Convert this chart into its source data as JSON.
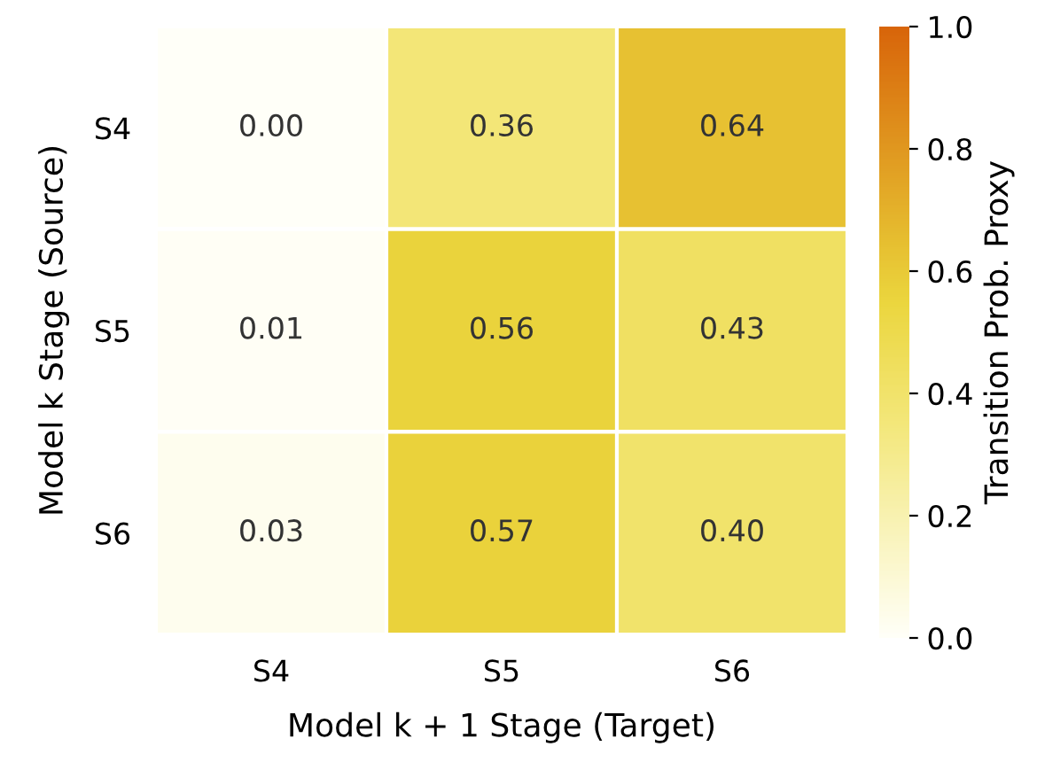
{
  "chart_data": {
    "type": "heatmap",
    "categories": [
      "S4",
      "S5",
      "S6"
    ],
    "y_categories": [
      "S4",
      "S5",
      "S6"
    ],
    "cells": [
      [
        0.0,
        0.36,
        0.64
      ],
      [
        0.01,
        0.56,
        0.43
      ],
      [
        0.03,
        0.57,
        0.4
      ]
    ],
    "cell_labels": [
      [
        "0.00",
        "0.36",
        "0.64"
      ],
      [
        "0.01",
        "0.56",
        "0.43"
      ],
      [
        "0.03",
        "0.57",
        "0.40"
      ]
    ],
    "xlabel": "Model k + 1 Stage (Target)",
    "ylabel": "Model k Stage (Source)",
    "clabel": "Transition Prob. Proxy",
    "clim": [
      0.0,
      1.0
    ],
    "cticks": [
      {
        "value": 0.0,
        "label": "0.0"
      },
      {
        "value": 0.2,
        "label": "0.2"
      },
      {
        "value": 0.4,
        "label": "0.4"
      },
      {
        "value": 0.6,
        "label": "0.6"
      },
      {
        "value": 0.8,
        "label": "0.8"
      },
      {
        "value": 1.0,
        "label": "1.0"
      }
    ]
  }
}
